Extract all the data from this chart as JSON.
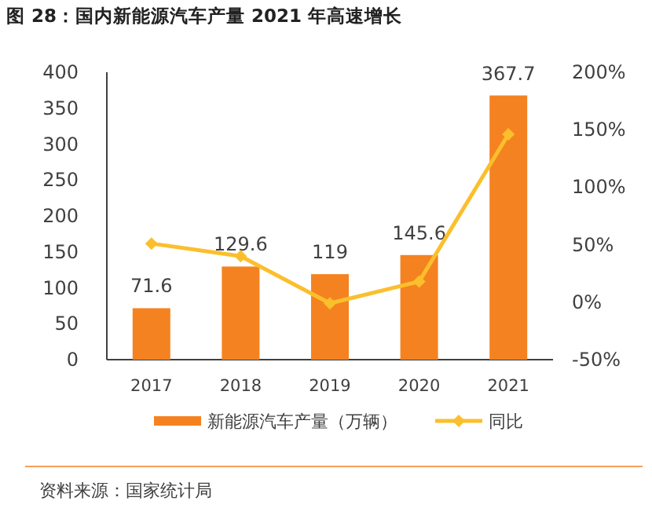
{
  "chart_data": {
    "type": "bar",
    "title": "图 28：国内新能源汽车产量 2021 年高速增长",
    "categories": [
      "2017",
      "2018",
      "2019",
      "2020",
      "2021"
    ],
    "series": [
      {
        "name": "新能源汽车产量（万辆）",
        "color": "#f58220",
        "values": [
          71.6,
          129.6,
          119,
          145.6,
          367.7
        ],
        "value_labels": [
          "71.6",
          "129.6",
          "119",
          "145.6",
          "367.7"
        ]
      },
      {
        "name": "同比",
        "type": "line",
        "axis": "y2",
        "color": "#fbbf2d",
        "marker": "diamond",
        "values": [
          51,
          40,
          -1,
          18,
          146
        ]
      }
    ],
    "ylim": [
      0,
      400
    ],
    "yticks": [
      0,
      50,
      100,
      150,
      200,
      250,
      300,
      350,
      400
    ],
    "y2lim": [
      -50,
      200
    ],
    "y2ticks": [
      {
        "value": -50,
        "label": "-50%"
      },
      {
        "value": 0,
        "label": "0%"
      },
      {
        "value": 50,
        "label": "50%"
      },
      {
        "value": 100,
        "label": "100%"
      },
      {
        "value": 150,
        "label": "150%"
      },
      {
        "value": 200,
        "label": "200%"
      }
    ],
    "legend": "bottom",
    "grid": false,
    "annotations": [
      "资料来源：国家统计局"
    ]
  }
}
